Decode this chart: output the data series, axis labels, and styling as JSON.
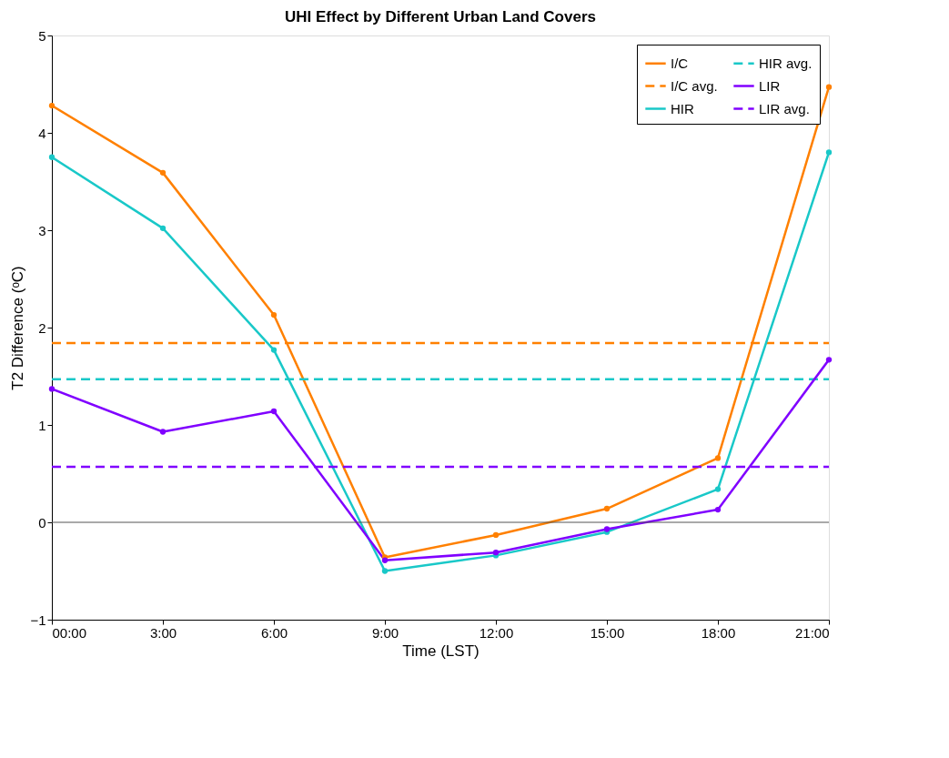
{
  "chart_data": {
    "type": "line",
    "title": "UHI Effect by Different Urban Land Covers",
    "xlabel": "Time (LST)",
    "ylabel": "T2 Difference (ᵒC)",
    "x": [
      0,
      3,
      6,
      9,
      12,
      15,
      18,
      21
    ],
    "xlim": [
      0,
      21
    ],
    "xticks": [
      {
        "value": 0,
        "label": "00:00"
      },
      {
        "value": 3,
        "label": "3:00"
      },
      {
        "value": 6,
        "label": "6:00"
      },
      {
        "value": 9,
        "label": "9:00"
      },
      {
        "value": 12,
        "label": "12:00"
      },
      {
        "value": 15,
        "label": "15:00"
      },
      {
        "value": 18,
        "label": "18:00"
      },
      {
        "value": 21,
        "label": "21:00"
      }
    ],
    "ylim": [
      -1,
      5
    ],
    "yticks": [
      -1,
      0,
      1,
      2,
      3,
      4,
      5
    ],
    "series": [
      {
        "name": "I/C",
        "color": "#ff8000",
        "marker": "circle",
        "line_style": "solid",
        "values": [
          4.28,
          3.59,
          2.13,
          -0.36,
          -0.13,
          0.14,
          0.66,
          4.47
        ]
      },
      {
        "name": "I/C avg.",
        "color": "#ff8000",
        "marker": "none",
        "line_style": "dashed",
        "values": [
          1.84,
          1.84,
          1.84,
          1.84,
          1.84,
          1.84,
          1.84,
          1.84
        ]
      },
      {
        "name": "HIR",
        "color": "#19c8c8",
        "marker": "circle",
        "line_style": "solid",
        "values": [
          3.75,
          3.02,
          1.77,
          -0.5,
          -0.34,
          -0.1,
          0.34,
          3.8
        ]
      },
      {
        "name": "HIR avg.",
        "color": "#19c8c8",
        "marker": "none",
        "line_style": "dashed",
        "values": [
          1.47,
          1.47,
          1.47,
          1.47,
          1.47,
          1.47,
          1.47,
          1.47
        ]
      },
      {
        "name": "LIR",
        "color": "#8000ff",
        "marker": "circle",
        "line_style": "solid",
        "values": [
          1.37,
          0.93,
          1.14,
          -0.39,
          -0.31,
          -0.07,
          0.13,
          1.67
        ]
      },
      {
        "name": "LIR avg.",
        "color": "#8000ff",
        "marker": "none",
        "line_style": "dashed",
        "values": [
          0.57,
          0.57,
          0.57,
          0.57,
          0.57,
          0.57,
          0.57,
          0.57
        ]
      }
    ],
    "ref_lines": [
      {
        "axis": "y",
        "value": 0,
        "color": "#555555"
      }
    ],
    "legend": "top right",
    "grid": false
  }
}
